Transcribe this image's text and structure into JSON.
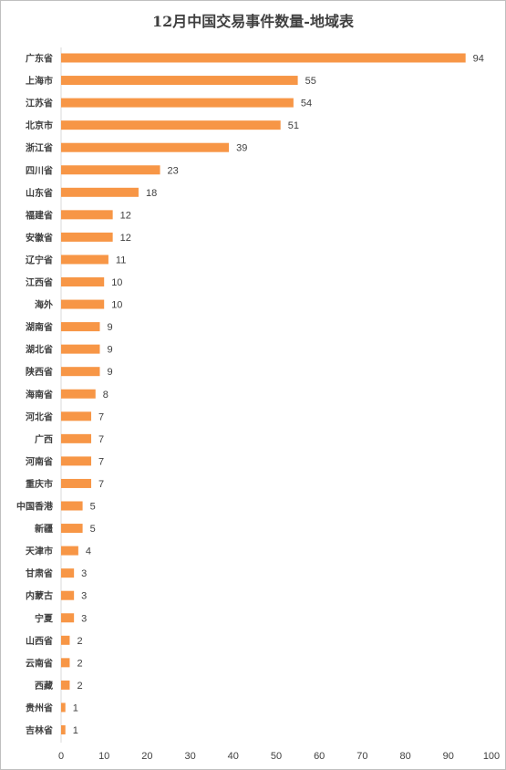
{
  "chart_data": {
    "type": "bar",
    "orientation": "horizontal",
    "title": "12月中国交易事件数量-地域表",
    "categories": [
      "广东省",
      "上海市",
      "江苏省",
      "北京市",
      "浙江省",
      "四川省",
      "山东省",
      "福建省",
      "安徽省",
      "辽宁省",
      "江西省",
      "海外",
      "湖南省",
      "湖北省",
      "陕西省",
      "海南省",
      "河北省",
      "广西",
      "河南省",
      "重庆市",
      "中国香港",
      "新疆",
      "天津市",
      "甘肃省",
      "内蒙古",
      "宁夏",
      "山西省",
      "云南省",
      "西藏",
      "贵州省",
      "吉林省"
    ],
    "values": [
      94,
      55,
      54,
      51,
      39,
      23,
      18,
      12,
      12,
      11,
      10,
      10,
      9,
      9,
      9,
      8,
      7,
      7,
      7,
      7,
      5,
      5,
      4,
      3,
      3,
      3,
      2,
      2,
      2,
      1,
      1
    ],
    "xlim": [
      0,
      100
    ],
    "xticks": [
      0,
      10,
      20,
      30,
      40,
      50,
      60,
      70,
      80,
      90,
      100
    ],
    "bar_color": "#f79646",
    "grid": false,
    "legend": "none",
    "data_labels": true
  }
}
